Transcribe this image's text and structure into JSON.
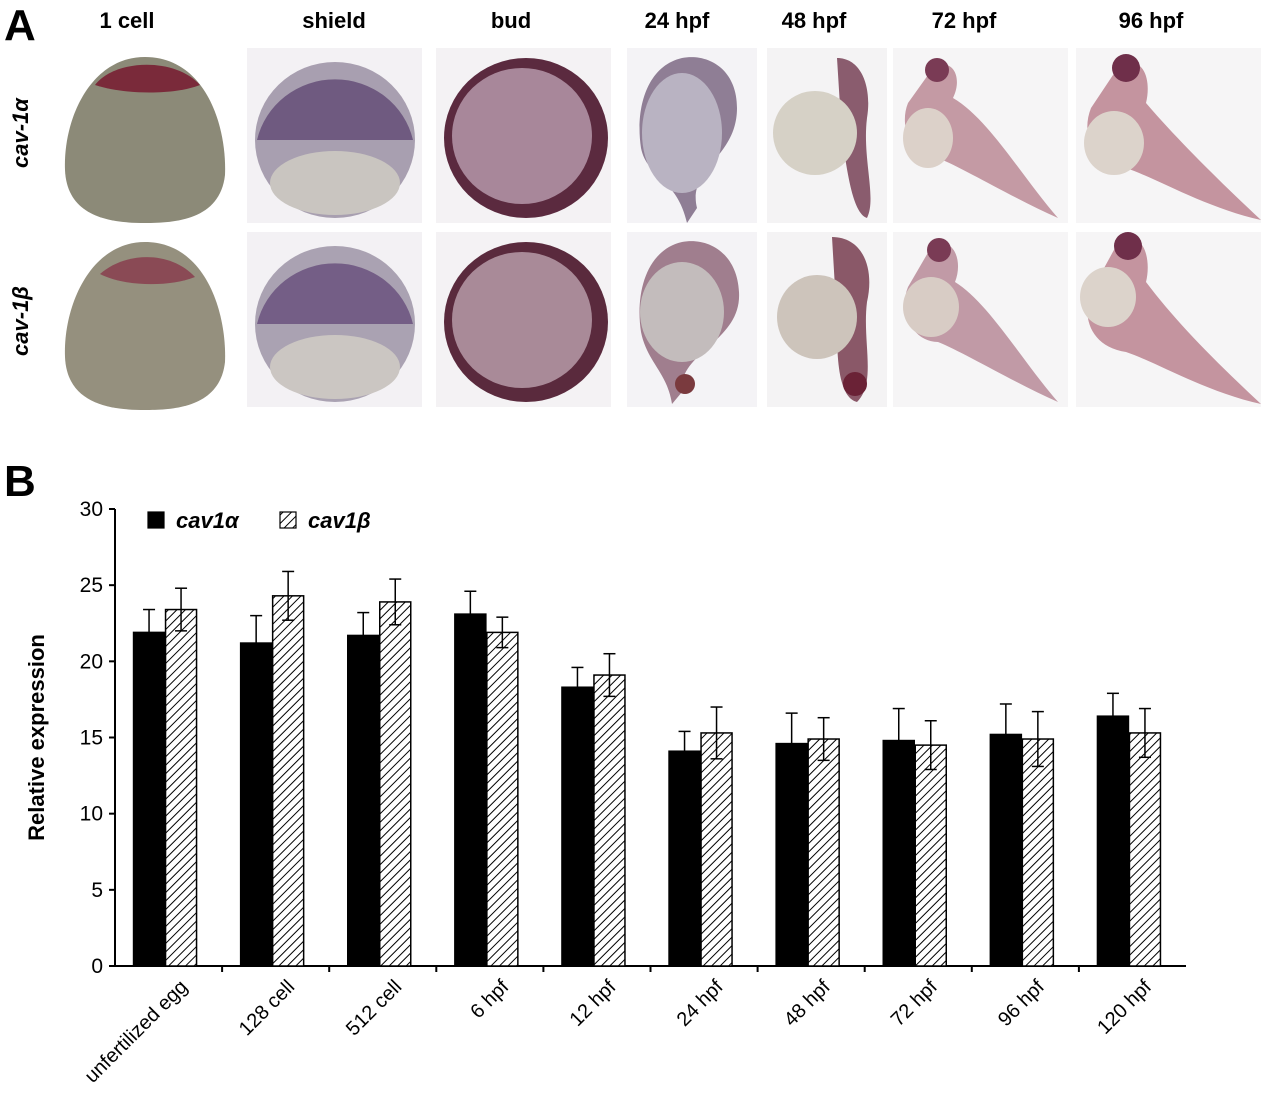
{
  "panel_a": {
    "letter": "A",
    "stages": [
      "1 cell",
      "shield",
      "bud",
      "24 hpf",
      "48 hpf",
      "72 hpf",
      "96 hpf"
    ],
    "genes": [
      "cav-1α",
      "cav-1β"
    ]
  },
  "panel_b": {
    "letter": "B"
  },
  "chart_data": {
    "type": "bar",
    "title": "",
    "xlabel": "",
    "ylabel": "Relative expression",
    "ylim": [
      0,
      30
    ],
    "yticks": [
      0,
      5,
      10,
      15,
      20,
      25,
      30
    ],
    "legend": "top-left",
    "grid": false,
    "categories": [
      "unfertilized egg",
      "128 cell",
      "512 cell",
      "6 hpf",
      "12 hpf",
      "24 hpf",
      "48 hpf",
      "72 hpf",
      "96 hpf",
      "120 hpf"
    ],
    "series": [
      {
        "name": "cav1α",
        "fill": "solid-black",
        "values": [
          21.9,
          21.2,
          21.7,
          23.1,
          18.3,
          14.1,
          14.6,
          14.8,
          15.2,
          16.4
        ],
        "errors": [
          1.5,
          1.8,
          1.5,
          1.5,
          1.3,
          1.3,
          2.0,
          2.1,
          2.0,
          1.5
        ]
      },
      {
        "name": "cav1β",
        "fill": "diagonal-hatch",
        "values": [
          23.4,
          24.3,
          23.9,
          21.9,
          19.1,
          15.3,
          14.9,
          14.5,
          14.9,
          15.3
        ],
        "errors": [
          1.4,
          1.6,
          1.5,
          1.0,
          1.4,
          1.7,
          1.4,
          1.6,
          1.8,
          1.6
        ]
      }
    ]
  }
}
